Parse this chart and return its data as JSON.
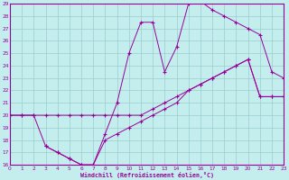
{
  "xlabel": "Windchill (Refroidissement éolien,°C)",
  "bg_color": "#c4eeee",
  "line_color": "#990099",
  "grid_color": "#99cccc",
  "xmin": 0,
  "xmax": 23,
  "ymin": 16,
  "ymax": 29,
  "line1_x": [
    0,
    1,
    2,
    3,
    4,
    5,
    6,
    7,
    8,
    9,
    10,
    11,
    12,
    13,
    14,
    15,
    16,
    17,
    18,
    19,
    20,
    21,
    22,
    23
  ],
  "line1_y": [
    20,
    20,
    20,
    20,
    20,
    20,
    20,
    20,
    20,
    20,
    20,
    20,
    20.5,
    21,
    21.5,
    22,
    22.5,
    23,
    23.5,
    24,
    24.5,
    21.5,
    21.5,
    21.5
  ],
  "line2_x": [
    0,
    1,
    2,
    3,
    4,
    5,
    6,
    7,
    8,
    9,
    10,
    11,
    12,
    13,
    14,
    15,
    16,
    17,
    18,
    19,
    20,
    21,
    22,
    23
  ],
  "line2_y": [
    20,
    20,
    20,
    17.5,
    17,
    16.5,
    16,
    16,
    18.5,
    21,
    25,
    27.5,
    27.5,
    23.5,
    25.5,
    29,
    29.2,
    28.5,
    28,
    27.5,
    27,
    26.5,
    23.5,
    23
  ],
  "line3_x": [
    3,
    4,
    5,
    6,
    7,
    8,
    9,
    10,
    11,
    12,
    13,
    14,
    15,
    16,
    17,
    18,
    19,
    20,
    21,
    22,
    23
  ],
  "line3_y": [
    17.5,
    17,
    16.5,
    16,
    16,
    18,
    18.5,
    19,
    19.5,
    20,
    20.5,
    21,
    22,
    22.5,
    23,
    23.5,
    24,
    24.5,
    21.5,
    21.5,
    21.5
  ]
}
